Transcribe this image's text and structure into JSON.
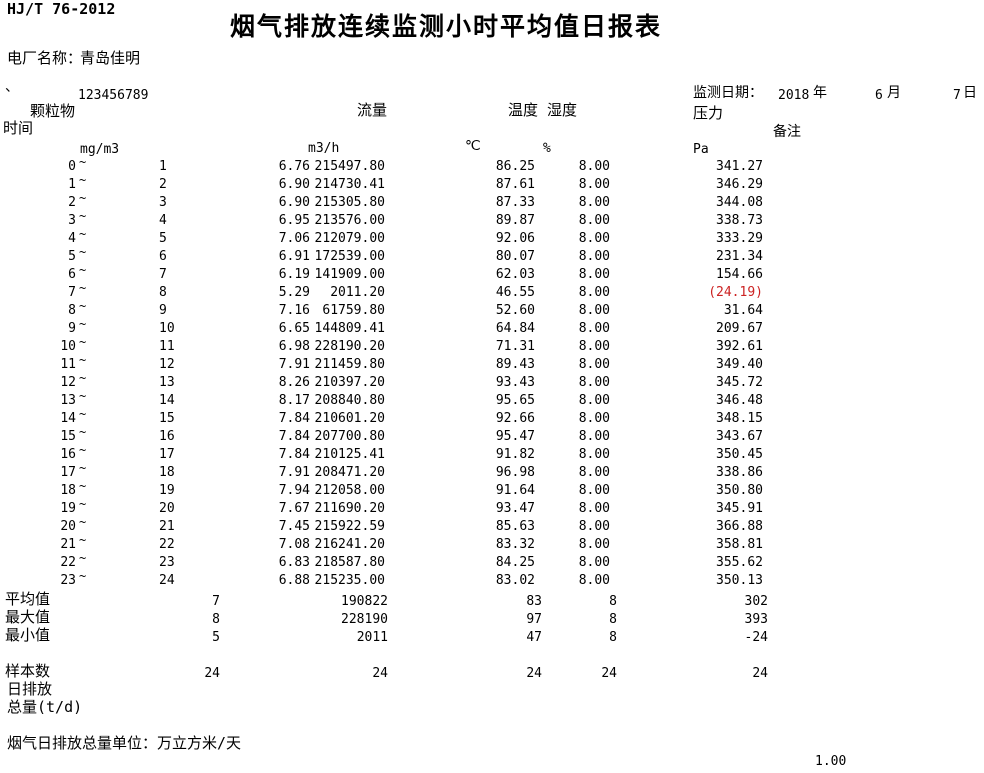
{
  "page": {
    "doc_code": "HJ/T 76-2012",
    "title": "烟气排放连续监测小时平均值日报表",
    "plant_label": "电厂名称：",
    "plant_name": "青岛佳明",
    "corner_mark": "、",
    "serial_number": "123456789",
    "footer_note": "烟气日排放总量单位：万立方米/天",
    "footer_value": "1.00"
  },
  "date": {
    "label": "监测日期：",
    "year": "2018",
    "year_suffix": "年",
    "month": "6",
    "month_suffix": "月",
    "day": "7",
    "day_suffix": "日"
  },
  "columns": {
    "time_label": "时间",
    "pm_label": "颗粒物",
    "flow_label": "流量",
    "temp_hum_label": "温度 湿度",
    "pressure_label": "压力",
    "remark_label": "备注",
    "pm_unit": "mg/m3",
    "flow_unit": "m3/h",
    "temp_unit": "℃",
    "hum_unit": "%",
    "pressure_unit": "Pa",
    "tilde": "~"
  },
  "rows": [
    {
      "h1": "0",
      "h2": "1",
      "pm": "6.76",
      "flow": "215497.80",
      "temp": "86.25",
      "hum": "8.00",
      "press": "341.27",
      "press_red": false
    },
    {
      "h1": "1",
      "h2": "2",
      "pm": "6.90",
      "flow": "214730.41",
      "temp": "87.61",
      "hum": "8.00",
      "press": "346.29",
      "press_red": false
    },
    {
      "h1": "2",
      "h2": "3",
      "pm": "6.90",
      "flow": "215305.80",
      "temp": "87.33",
      "hum": "8.00",
      "press": "344.08",
      "press_red": false
    },
    {
      "h1": "3",
      "h2": "4",
      "pm": "6.95",
      "flow": "213576.00",
      "temp": "89.87",
      "hum": "8.00",
      "press": "338.73",
      "press_red": false
    },
    {
      "h1": "4",
      "h2": "5",
      "pm": "7.06",
      "flow": "212079.00",
      "temp": "92.06",
      "hum": "8.00",
      "press": "333.29",
      "press_red": false
    },
    {
      "h1": "5",
      "h2": "6",
      "pm": "6.91",
      "flow": "172539.00",
      "temp": "80.07",
      "hum": "8.00",
      "press": "231.34",
      "press_red": false
    },
    {
      "h1": "6",
      "h2": "7",
      "pm": "6.19",
      "flow": "141909.00",
      "temp": "62.03",
      "hum": "8.00",
      "press": "154.66",
      "press_red": false
    },
    {
      "h1": "7",
      "h2": "8",
      "pm": "5.29",
      "flow": "2011.20",
      "temp": "46.55",
      "hum": "8.00",
      "press": "(24.19)",
      "press_red": true
    },
    {
      "h1": "8",
      "h2": "9",
      "pm": "7.16",
      "flow": "61759.80",
      "temp": "52.60",
      "hum": "8.00",
      "press": "31.64",
      "press_red": false
    },
    {
      "h1": "9",
      "h2": "10",
      "pm": "6.65",
      "flow": "144809.41",
      "temp": "64.84",
      "hum": "8.00",
      "press": "209.67",
      "press_red": false
    },
    {
      "h1": "10",
      "h2": "11",
      "pm": "6.98",
      "flow": "228190.20",
      "temp": "71.31",
      "hum": "8.00",
      "press": "392.61",
      "press_red": false
    },
    {
      "h1": "11",
      "h2": "12",
      "pm": "7.91",
      "flow": "211459.80",
      "temp": "89.43",
      "hum": "8.00",
      "press": "349.40",
      "press_red": false
    },
    {
      "h1": "12",
      "h2": "13",
      "pm": "8.26",
      "flow": "210397.20",
      "temp": "93.43",
      "hum": "8.00",
      "press": "345.72",
      "press_red": false
    },
    {
      "h1": "13",
      "h2": "14",
      "pm": "8.17",
      "flow": "208840.80",
      "temp": "95.65",
      "hum": "8.00",
      "press": "346.48",
      "press_red": false
    },
    {
      "h1": "14",
      "h2": "15",
      "pm": "7.84",
      "flow": "210601.20",
      "temp": "92.66",
      "hum": "8.00",
      "press": "348.15",
      "press_red": false
    },
    {
      "h1": "15",
      "h2": "16",
      "pm": "7.84",
      "flow": "207700.80",
      "temp": "95.47",
      "hum": "8.00",
      "press": "343.67",
      "press_red": false
    },
    {
      "h1": "16",
      "h2": "17",
      "pm": "7.84",
      "flow": "210125.41",
      "temp": "91.82",
      "hum": "8.00",
      "press": "350.45",
      "press_red": false
    },
    {
      "h1": "17",
      "h2": "18",
      "pm": "7.91",
      "flow": "208471.20",
      "temp": "96.98",
      "hum": "8.00",
      "press": "338.86",
      "press_red": false
    },
    {
      "h1": "18",
      "h2": "19",
      "pm": "7.94",
      "flow": "212058.00",
      "temp": "91.64",
      "hum": "8.00",
      "press": "350.80",
      "press_red": false
    },
    {
      "h1": "19",
      "h2": "20",
      "pm": "7.67",
      "flow": "211690.20",
      "temp": "93.47",
      "hum": "8.00",
      "press": "345.91",
      "press_red": false
    },
    {
      "h1": "20",
      "h2": "21",
      "pm": "7.45",
      "flow": "215922.59",
      "temp": "85.63",
      "hum": "8.00",
      "press": "366.88",
      "press_red": false
    },
    {
      "h1": "21",
      "h2": "22",
      "pm": "7.08",
      "flow": "216241.20",
      "temp": "83.32",
      "hum": "8.00",
      "press": "358.81",
      "press_red": false
    },
    {
      "h1": "22",
      "h2": "23",
      "pm": "6.83",
      "flow": "218587.80",
      "temp": "84.25",
      "hum": "8.00",
      "press": "355.62",
      "press_red": false
    },
    {
      "h1": "23",
      "h2": "24",
      "pm": "6.88",
      "flow": "215235.00",
      "temp": "83.02",
      "hum": "8.00",
      "press": "350.13",
      "press_red": false
    }
  ],
  "summary": [
    {
      "label": "平均值",
      "pm": "7",
      "flow": "190822",
      "temp": "83",
      "hum": "8",
      "press": "302"
    },
    {
      "label": "最大值",
      "pm": "8",
      "flow": "228190",
      "temp": "97",
      "hum": "8",
      "press": "393"
    },
    {
      "label": "最小值",
      "pm": "5",
      "flow": "2011",
      "temp": "47",
      "hum": "8",
      "press": "-24"
    },
    {
      "label": "样本数",
      "pm": "24",
      "flow": "24",
      "temp": "24",
      "hum": "24",
      "press": "24"
    }
  ],
  "totals": {
    "daily_emission_label_line1": "日排放",
    "daily_emission_label_line2": "总量(t/d)"
  },
  "colors": {
    "text": "#000000",
    "background": "#ffffff",
    "negative_value": "#cc2222"
  }
}
